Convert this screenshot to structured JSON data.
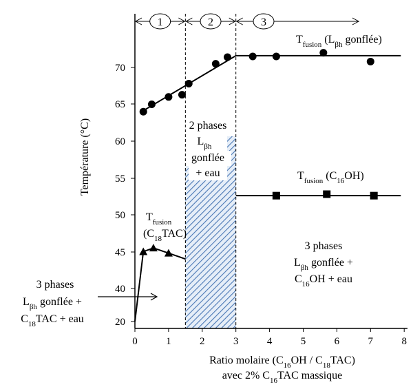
{
  "chart_data": {
    "type": "scatter",
    "xlabel": {
      "line1": [
        "Ratio molaire (C",
        "16",
        "OH / C",
        "18",
        "TAC)"
      ],
      "line2": [
        "avec 2% C",
        "16",
        "TAC massique"
      ]
    },
    "ylabel": "Température (°C)",
    "xlim": [
      0,
      8
    ],
    "ylim": [
      20,
      80
    ],
    "y_axis_break": "between 20 and 40",
    "x_ticks": [
      "0",
      "1",
      "2",
      "3",
      "4",
      "5",
      "6",
      "7",
      "8"
    ],
    "y_ticks": [
      "20",
      "40",
      "45",
      "50",
      "55",
      "60",
      "65",
      "70"
    ],
    "grid": false,
    "regions": [
      {
        "label": "1",
        "x": [
          0,
          1.5
        ]
      },
      {
        "label": "2",
        "x": [
          1.5,
          3
        ]
      },
      {
        "label": "3",
        "x": [
          3,
          8
        ]
      }
    ],
    "series": [
      {
        "marker": "circle",
        "points": [
          [
            0.25,
            64.0
          ],
          [
            0.5,
            65.0
          ],
          [
            1.0,
            66.0
          ],
          [
            1.4,
            66.3
          ],
          [
            1.6,
            67.8
          ],
          [
            2.4,
            70.5
          ],
          [
            2.75,
            71.4
          ],
          [
            3.5,
            71.5
          ],
          [
            4.2,
            71.5
          ],
          [
            5.6,
            72.0
          ],
          [
            7.0,
            70.8
          ]
        ],
        "fit": [
          [
            0.2,
            64.0
          ],
          [
            3.0,
            71.6
          ],
          [
            7.9,
            71.6
          ]
        ]
      },
      {
        "marker": "square",
        "points": [
          [
            4.2,
            52.6
          ],
          [
            5.7,
            52.8
          ],
          [
            7.1,
            52.6
          ]
        ],
        "fit": [
          [
            3.0,
            52.6
          ],
          [
            7.9,
            52.6
          ]
        ]
      },
      {
        "marker": "triangle",
        "points": [
          [
            0.25,
            45.0
          ],
          [
            0.55,
            45.5
          ],
          [
            1.0,
            44.8
          ]
        ],
        "fit": [
          [
            0.0,
            22.0
          ],
          [
            0.25,
            45.0
          ],
          [
            0.55,
            45.5
          ],
          [
            1.0,
            44.8
          ],
          [
            1.5,
            44.0
          ]
        ]
      }
    ],
    "annotations": {
      "tf_lbh": {
        "t": "T",
        "sub": "fusion",
        "rest1": " (L",
        "sub2": "βh",
        "rest2": " gonflée)"
      },
      "tf_c16": {
        "t": "T",
        "sub": "fusion",
        "rest1": " (C",
        "sub2": "16",
        "rest2": "OH)"
      },
      "tf_c18": {
        "line1_t": "T",
        "line1_sub": "fusion",
        "line2": [
          "(C",
          "18",
          "TAC)"
        ]
      },
      "two_phases": {
        "l1": "2 phases",
        "l2_t": "L",
        "l2_sub": "βh",
        "l3": "gonflée",
        "l4": "+ eau"
      },
      "three_right": {
        "l1": "3 phases",
        "l2": [
          "L",
          "βh",
          " gonflée +"
        ],
        "l3": [
          "C",
          "16",
          "OH + eau"
        ]
      },
      "three_left": {
        "l1": "3 phases",
        "l2": [
          "L",
          "βh",
          " gonflée +"
        ],
        "l3": [
          "C",
          "18",
          "TAC + eau"
        ]
      }
    },
    "colors": {
      "hatch_region": "#4a78b5",
      "hatch_bg": "#e6eef8",
      "marker": "#000000"
    }
  }
}
